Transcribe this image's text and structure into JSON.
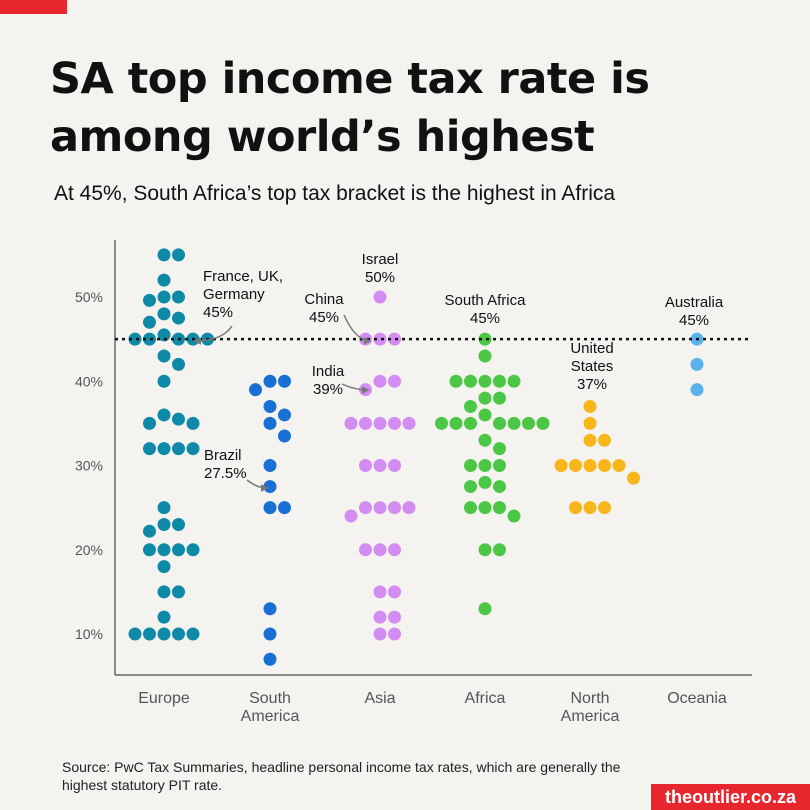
{
  "header": {
    "title": "SA top income tax rate is among world’s highest",
    "subtitle": "At 45%, South Africa’s top tax bracket is the highest in Africa"
  },
  "footer": {
    "source": "Source: PwC Tax Summaries, headline personal income tax rates, which are generally the highest statutory PIT rate.",
    "brand": "theoutlier.co.za"
  },
  "colors": {
    "background": "#f4f3ef",
    "accent": "#e8262e",
    "Europe": "#0e8aa7",
    "South America": "#1a6fd4",
    "Asia": "#d38cf2",
    "Africa": "#4cc745",
    "North America": "#f7b61c",
    "Oceania": "#5ab2ec"
  },
  "chart_data": {
    "type": "scatter",
    "title": "SA top income tax rate is among world’s highest",
    "subtitle": "At 45%, South Africa’s top tax bracket is the highest in Africa",
    "xlabel": "",
    "ylabel": "",
    "ylim": [
      5,
      55
    ],
    "yticks": [
      10,
      20,
      30,
      40,
      50
    ],
    "ytick_labels": [
      "10%",
      "20%",
      "30%",
      "40%",
      "50%"
    ],
    "grid": false,
    "legend": "none",
    "categories": [
      {
        "label": "Europe",
        "label_lines": [
          "Europe"
        ]
      },
      {
        "label": "South America",
        "label_lines": [
          "South",
          "America"
        ]
      },
      {
        "label": "Asia",
        "label_lines": [
          "Asia"
        ]
      },
      {
        "label": "Africa",
        "label_lines": [
          "Africa"
        ]
      },
      {
        "label": "North America",
        "label_lines": [
          "North",
          "America"
        ]
      },
      {
        "label": "Oceania",
        "label_lines": [
          "Oceania"
        ]
      }
    ],
    "reference_line": {
      "value": 45,
      "style": "dotted"
    },
    "series": [
      {
        "category": "Europe",
        "values": [
          55,
          55,
          52,
          50,
          50,
          49.6,
          48,
          47.5,
          47,
          45.5,
          45,
          45,
          45,
          45,
          45,
          43,
          42,
          40,
          36,
          35.5,
          35,
          35,
          32,
          32,
          32,
          32,
          25,
          23,
          23,
          22.2,
          20,
          20,
          20,
          20,
          18,
          15,
          15,
          12,
          10,
          10,
          10,
          10,
          10
        ]
      },
      {
        "category": "South America",
        "values": [
          40,
          40,
          39,
          37,
          36,
          35,
          33.5,
          30,
          27.5,
          25,
          25,
          13,
          10,
          7
        ]
      },
      {
        "category": "Asia",
        "values": [
          50,
          45,
          45,
          45,
          40,
          40,
          39,
          35,
          35,
          35,
          35,
          35,
          30,
          30,
          30,
          25,
          25,
          25,
          25,
          24,
          20,
          20,
          20,
          15,
          15,
          12,
          12,
          10,
          10
        ]
      },
      {
        "category": "Africa",
        "values": [
          45,
          43,
          40,
          40,
          40,
          40,
          40,
          38,
          38,
          37,
          36,
          35,
          35,
          35,
          35,
          35,
          35,
          35,
          33,
          32,
          30,
          30,
          30,
          28,
          27.5,
          27.5,
          25,
          25,
          25,
          24,
          20,
          20,
          13
        ]
      },
      {
        "category": "North America",
        "values": [
          37,
          35,
          33,
          33,
          30,
          30,
          30,
          30,
          30,
          28.5,
          25,
          25,
          25
        ]
      },
      {
        "category": "Oceania",
        "values": [
          45,
          42,
          39
        ]
      }
    ],
    "annotations": [
      {
        "lines": [
          "France, UK,",
          "Germany",
          "45%"
        ],
        "category": "Europe",
        "value": 45
      },
      {
        "lines": [
          "Brazil",
          "27.5%"
        ],
        "category": "South America",
        "value": 27.5
      },
      {
        "lines": [
          "Israel",
          "50%"
        ],
        "category": "Asia",
        "value": 50
      },
      {
        "lines": [
          "China",
          "45%"
        ],
        "category": "Asia",
        "value": 45
      },
      {
        "lines": [
          "India",
          "39%"
        ],
        "category": "Asia",
        "value": 39
      },
      {
        "lines": [
          "South Africa",
          "45%"
        ],
        "category": "Africa",
        "value": 45
      },
      {
        "lines": [
          "United",
          "States",
          "37%"
        ],
        "category": "North America",
        "value": 37
      },
      {
        "lines": [
          "Australia",
          "45%"
        ],
        "category": "Oceania",
        "value": 45
      }
    ]
  }
}
